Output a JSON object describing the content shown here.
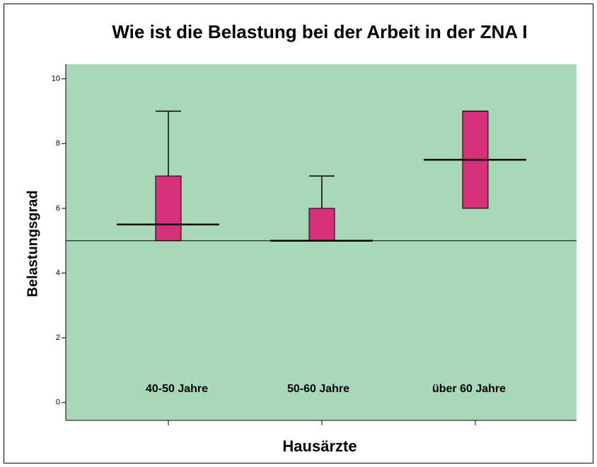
{
  "chart_data": {
    "type": "box",
    "title": "Wie ist die Belastung bei der Arbeit in der ZNA I",
    "x_label": "Hausärzte",
    "y_label": "Belastungsgrad",
    "categories": [
      "40-50 Jahre",
      "50-60 Jahre",
      "über 60 Jahre"
    ],
    "boxes": [
      {
        "q1": 5,
        "median": 5.5,
        "q3": 7,
        "whisker_high": 9
      },
      {
        "q1": 5,
        "median": 5,
        "q3": 6,
        "whisker_high": 7
      },
      {
        "q1": 6,
        "median": 7.5,
        "q3": 9,
        "whisker_high": 9
      }
    ],
    "reference_line": 5,
    "color": "#d6307a",
    "background": "#a8d8b8",
    "ylim": [
      -0.55,
      10.45
    ],
    "yticks": [
      0,
      2,
      4,
      6,
      8,
      10
    ]
  }
}
